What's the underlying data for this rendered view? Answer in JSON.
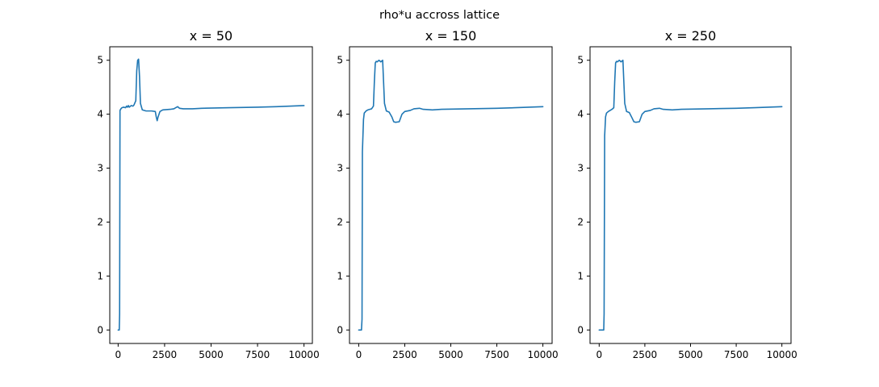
{
  "figure": {
    "suptitle": "rho*u accross lattice"
  },
  "chart_data": [
    {
      "type": "line",
      "title": "x = 50",
      "xlabel": "",
      "ylabel": "",
      "xlim": [
        -450,
        10450
      ],
      "ylim": [
        -0.25,
        5.25
      ],
      "xticks": [
        0,
        2500,
        5000,
        7500,
        10000
      ],
      "yticks": [
        0,
        1,
        2,
        3,
        4,
        5
      ],
      "grid": false,
      "series": [
        {
          "color": "#1f77b4",
          "x": [
            0,
            60,
            80,
            100,
            150,
            200,
            300,
            400,
            450,
            500,
            550,
            600,
            700,
            800,
            850,
            950,
            1000,
            1050,
            1100,
            1150,
            1200,
            1300,
            1500,
            1800,
            2000,
            2050,
            2100,
            2150,
            2250,
            2400,
            2800,
            3000,
            3100,
            3200,
            3300,
            3500,
            4000,
            4500,
            6000,
            7500,
            8500,
            10000
          ],
          "y": [
            0.0,
            0.0,
            0.3,
            4.07,
            4.1,
            4.12,
            4.13,
            4.12,
            4.15,
            4.13,
            4.16,
            4.13,
            4.16,
            4.15,
            4.17,
            4.25,
            4.8,
            5.0,
            5.02,
            4.7,
            4.2,
            4.08,
            4.06,
            4.06,
            4.05,
            3.95,
            3.88,
            3.95,
            4.05,
            4.08,
            4.09,
            4.1,
            4.12,
            4.14,
            4.11,
            4.1,
            4.1,
            4.11,
            4.12,
            4.13,
            4.14,
            4.16
          ]
        }
      ]
    },
    {
      "type": "line",
      "title": "x = 150",
      "xlabel": "",
      "ylabel": "",
      "xlim": [
        -500,
        10500
      ],
      "ylim": [
        -0.25,
        5.25
      ],
      "xticks": [
        0,
        2500,
        5000,
        7500,
        10000
      ],
      "yticks": [
        0,
        1,
        2,
        3,
        4,
        5
      ],
      "grid": false,
      "series": [
        {
          "color": "#1f77b4",
          "x": [
            0,
            150,
            180,
            200,
            260,
            300,
            400,
            500,
            600,
            700,
            800,
            850,
            900,
            950,
            1000,
            1100,
            1200,
            1300,
            1350,
            1400,
            1500,
            1650,
            1800,
            1900,
            2000,
            2200,
            2350,
            2500,
            2800,
            3000,
            3300,
            3500,
            4000,
            4500,
            6000,
            7500,
            8500,
            10000
          ],
          "y": [
            0.0,
            0.0,
            0.2,
            3.3,
            3.9,
            4.02,
            4.06,
            4.08,
            4.09,
            4.1,
            4.15,
            4.6,
            4.95,
            4.98,
            4.97,
            5.0,
            4.97,
            5.0,
            4.6,
            4.2,
            4.06,
            4.04,
            3.95,
            3.86,
            3.85,
            3.86,
            4.0,
            4.05,
            4.07,
            4.1,
            4.11,
            4.09,
            4.08,
            4.09,
            4.1,
            4.11,
            4.12,
            4.14
          ]
        }
      ]
    },
    {
      "type": "line",
      "title": "x = 250",
      "xlabel": "",
      "ylabel": "",
      "xlim": [
        -500,
        10500
      ],
      "ylim": [
        -0.25,
        5.25
      ],
      "xticks": [
        0,
        2500,
        5000,
        7500,
        10000
      ],
      "yticks": [
        0,
        1,
        2,
        3,
        4,
        5
      ],
      "grid": false,
      "series": [
        {
          "color": "#1f77b4",
          "x": [
            0,
            250,
            270,
            300,
            350,
            400,
            500,
            600,
            700,
            800,
            850,
            900,
            950,
            1000,
            1100,
            1200,
            1300,
            1350,
            1400,
            1500,
            1650,
            1800,
            1900,
            2000,
            2200,
            2350,
            2500,
            2800,
            3000,
            3300,
            3500,
            4000,
            4500,
            6000,
            7500,
            8500,
            10000
          ],
          "y": [
            0.0,
            0.0,
            0.3,
            3.6,
            3.95,
            4.02,
            4.05,
            4.07,
            4.09,
            4.12,
            4.6,
            4.95,
            4.98,
            4.97,
            5.0,
            4.97,
            5.0,
            4.6,
            4.2,
            4.05,
            4.03,
            3.93,
            3.86,
            3.85,
            3.86,
            4.0,
            4.05,
            4.07,
            4.1,
            4.11,
            4.09,
            4.08,
            4.09,
            4.1,
            4.11,
            4.12,
            4.14
          ]
        }
      ]
    }
  ]
}
